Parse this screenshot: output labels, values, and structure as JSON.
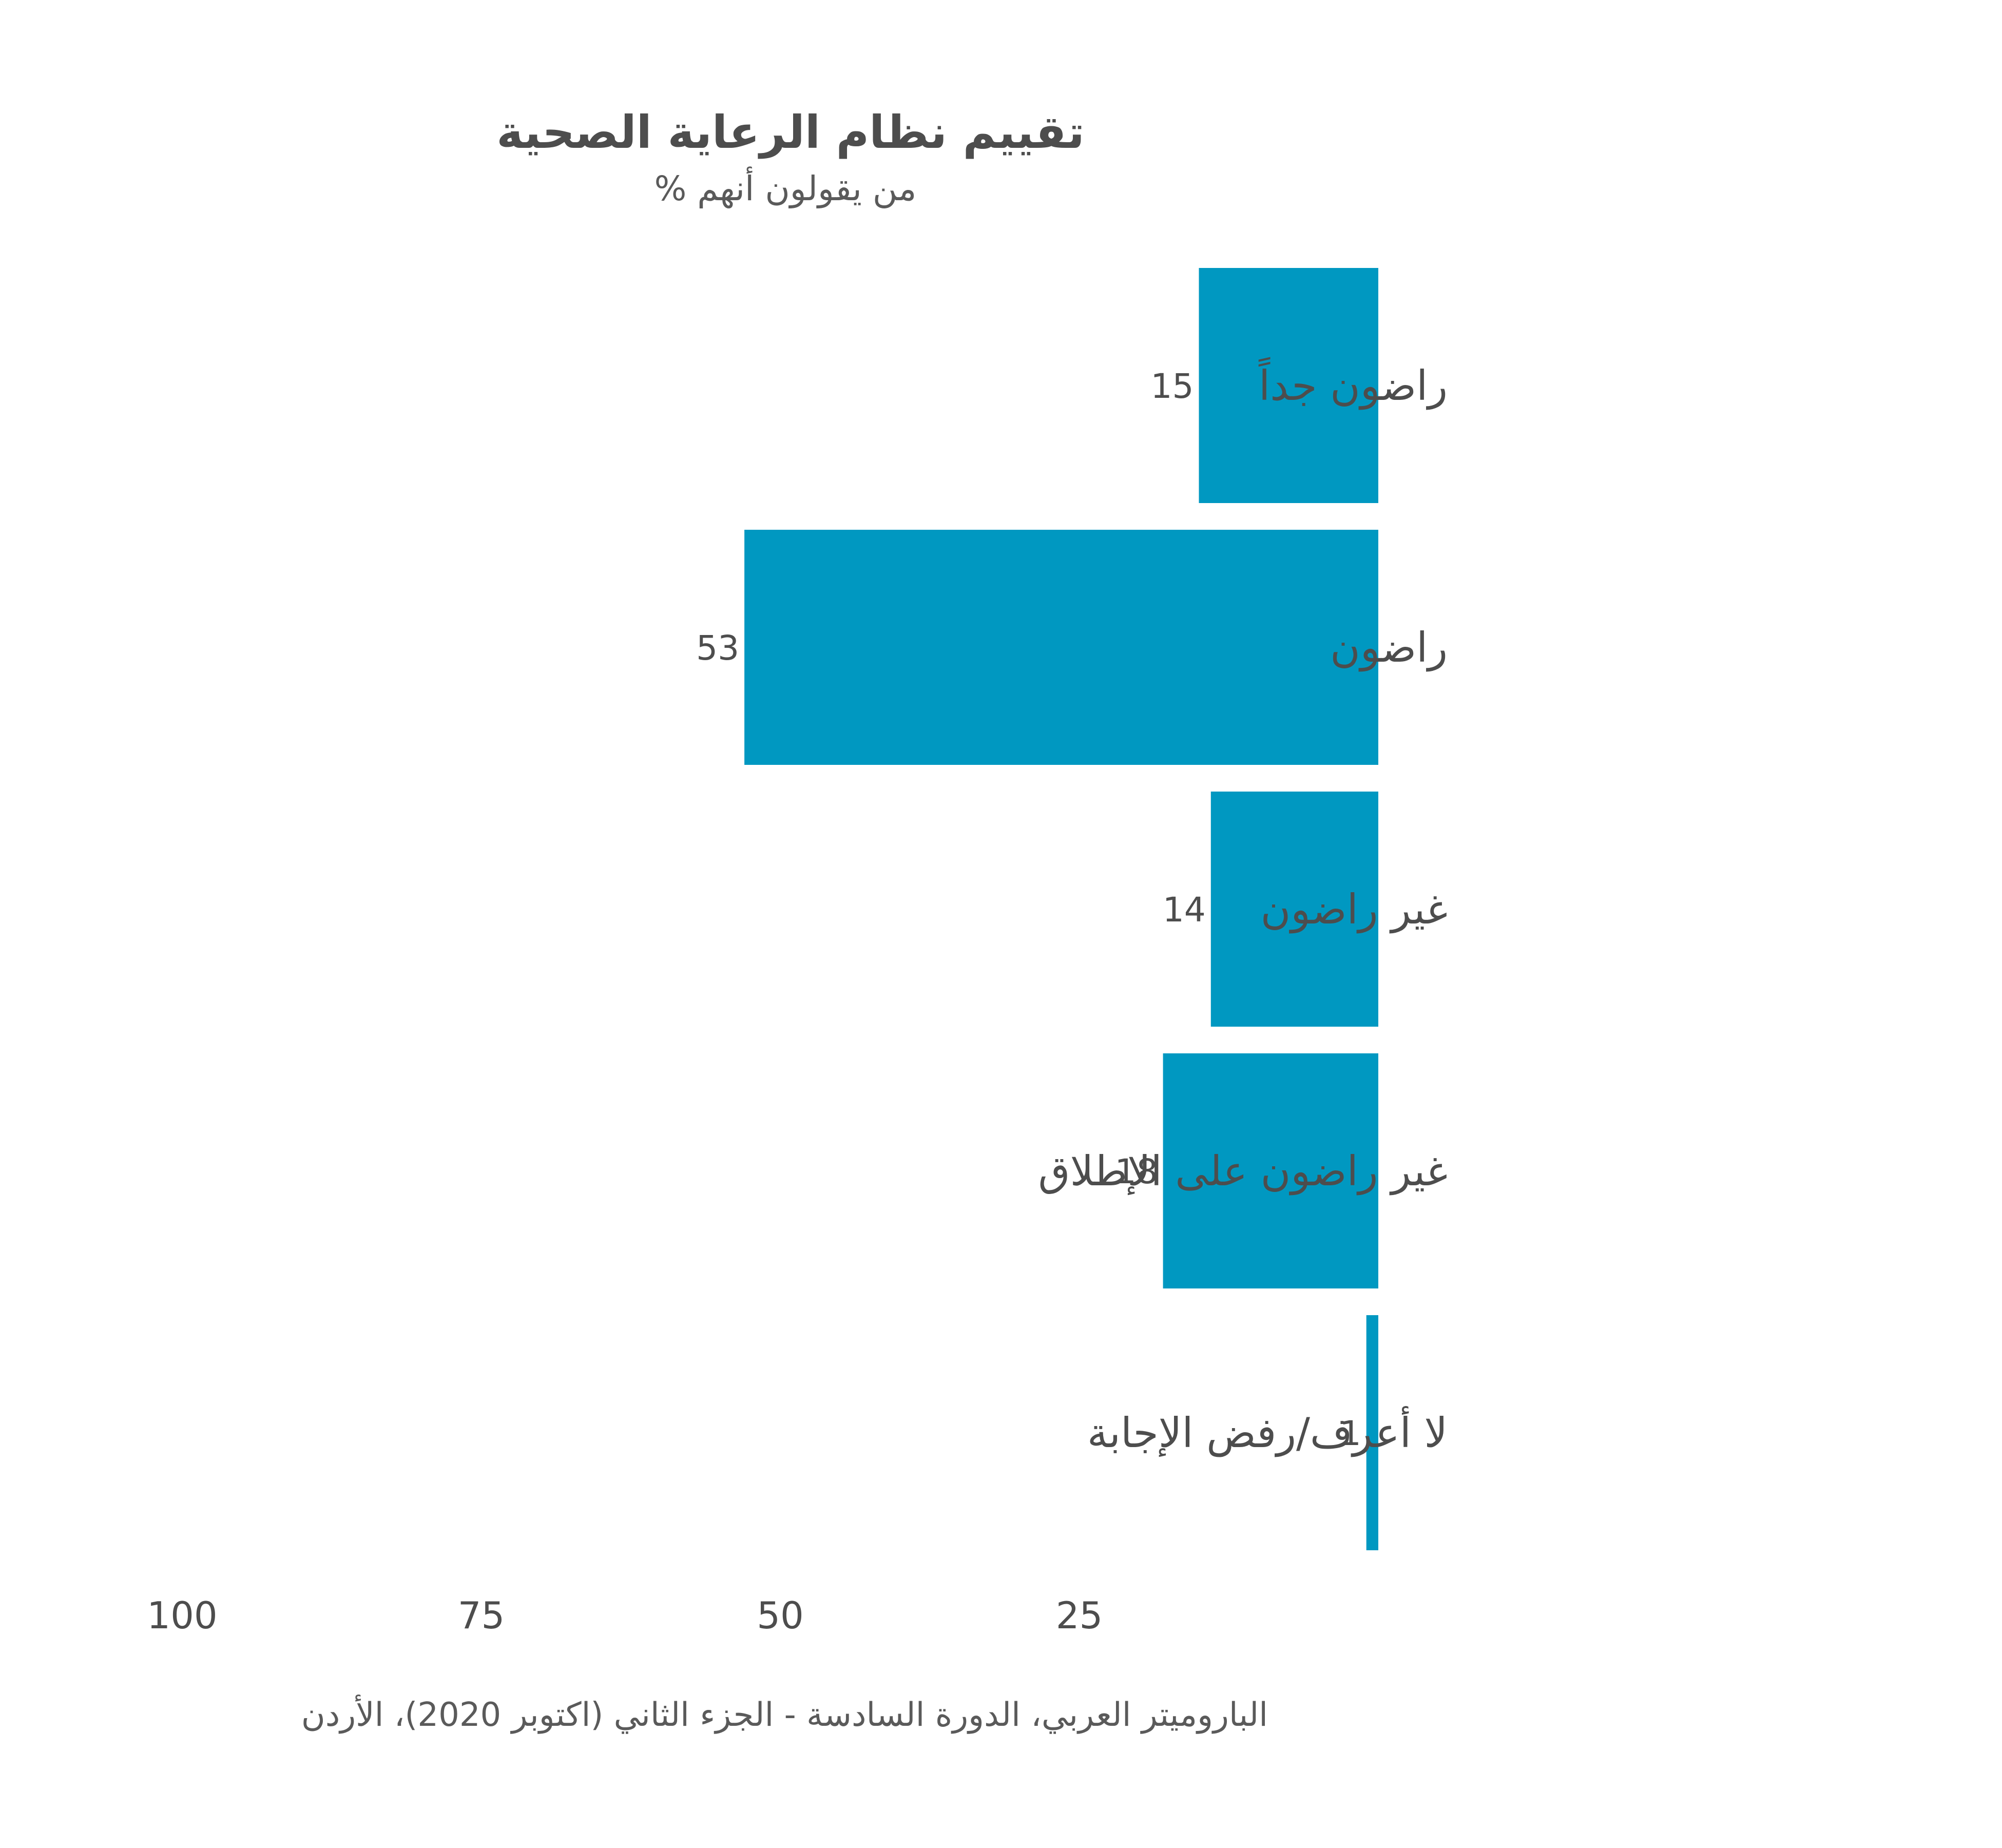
{
  "chart_data": {
    "type": "bar",
    "orientation": "horizontal",
    "title": "تقييم نظام الرعاية الصحية",
    "subtitle": "% من يقولون أنهم",
    "categories": [
      "راضون جداً",
      "راضون",
      "غير راضون",
      "غير راضون على الإطلاق",
      "لا أعرف/رفض الإجابة"
    ],
    "values": [
      15,
      53,
      14,
      18,
      1
    ],
    "axis_ticks": [
      100,
      75,
      50,
      25
    ],
    "xlim": [
      0,
      100
    ],
    "x_direction": "reversed",
    "grid": false,
    "legend": "none",
    "bar_color": "#0098c1",
    "source": "الباروميتر العربي، الدورة السادسة - الجزء الثاني (اكتوبر 2020)، الأردن"
  }
}
